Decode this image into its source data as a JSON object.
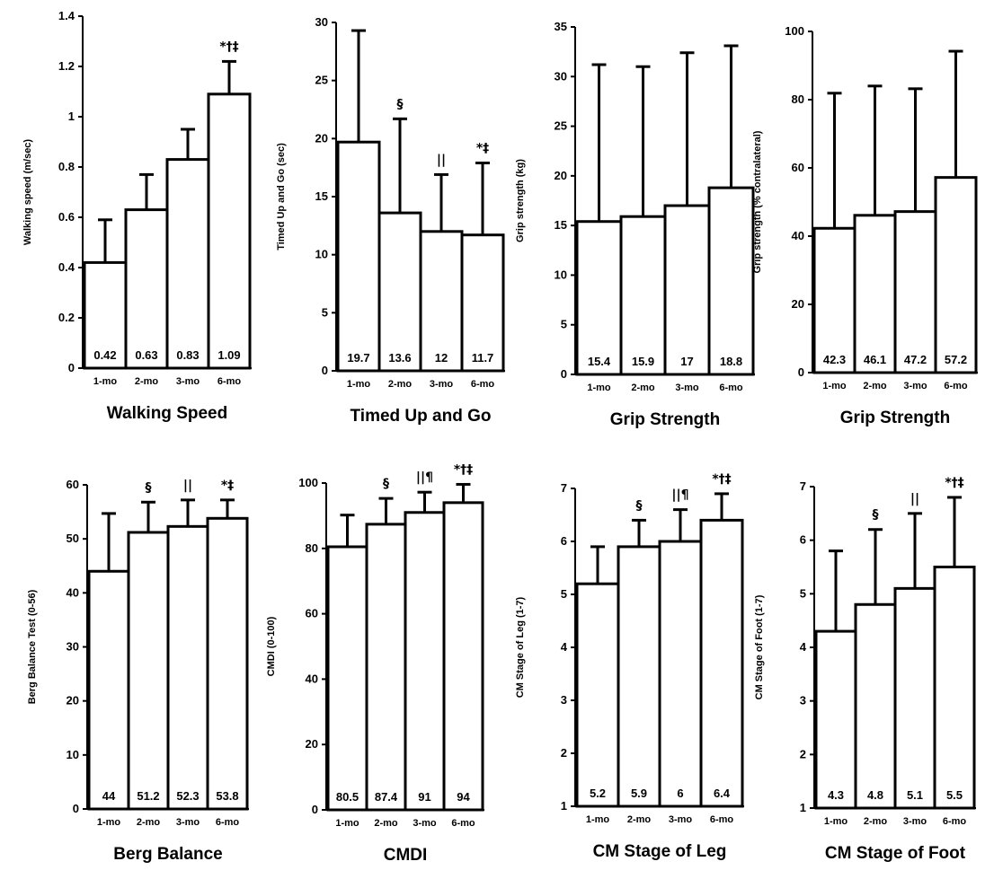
{
  "chart_data": [
    {
      "type": "bar",
      "title": "Walking Speed",
      "ylabel": "Walking speed (m/sec)",
      "categories": [
        "1-mo",
        "2-mo",
        "3-mo",
        "6-mo"
      ],
      "values": [
        0.42,
        0.63,
        0.83,
        1.09
      ],
      "value_labels": [
        "0.42",
        "0.63",
        "0.83",
        "1.09"
      ],
      "error_upper": [
        0.59,
        0.77,
        0.95,
        1.22
      ],
      "significance": [
        "",
        "",
        "",
        "*†‡"
      ],
      "ylim": [
        0,
        1.4
      ],
      "yticks": [
        0,
        0.2,
        0.4,
        0.6,
        0.8,
        1,
        1.2,
        1.4
      ],
      "ytick_labels": [
        "0",
        "0.2",
        "0.4",
        "0.6",
        "0.8",
        "1",
        "1.2",
        "1.4"
      ]
    },
    {
      "type": "bar",
      "title": "Timed Up and Go",
      "ylabel": "Timed Up and Go (sec)",
      "categories": [
        "1-mo",
        "2-mo",
        "3-mo",
        "6-mo"
      ],
      "values": [
        19.7,
        13.6,
        12,
        11.7
      ],
      "value_labels": [
        "19.7",
        "13.6",
        "12",
        "11.7"
      ],
      "error_upper": [
        29.3,
        21.7,
        16.9,
        17.9
      ],
      "significance": [
        "",
        "§",
        "||",
        "*‡"
      ],
      "ylim": [
        0,
        30
      ],
      "yticks": [
        0,
        5,
        10,
        15,
        20,
        25,
        30
      ],
      "ytick_labels": [
        "0",
        "5",
        "10",
        "15",
        "20",
        "25",
        "30"
      ]
    },
    {
      "type": "bar",
      "title": "Grip Strength",
      "ylabel": "Grip strength (kg)",
      "categories": [
        "1-mo",
        "2-mo",
        "3-mo",
        "6-mo"
      ],
      "values": [
        15.4,
        15.9,
        17,
        18.8
      ],
      "value_labels": [
        "15.4",
        "15.9",
        "17",
        "18.8"
      ],
      "error_upper": [
        31.2,
        31,
        32.4,
        33.1
      ],
      "significance": [
        "",
        "",
        "",
        ""
      ],
      "ylim": [
        0,
        35
      ],
      "yticks": [
        0,
        5,
        10,
        15,
        20,
        25,
        30,
        35
      ],
      "ytick_labels": [
        "0",
        "5",
        "10",
        "15",
        "20",
        "25",
        "30",
        "35"
      ]
    },
    {
      "type": "bar",
      "title": "Grip Strength",
      "ylabel": "Grip strength (% contralateral)",
      "categories": [
        "1-mo",
        "2-mo",
        "3-mo",
        "6-mo"
      ],
      "values": [
        42.3,
        46.1,
        47.2,
        57.2
      ],
      "value_labels": [
        "42.3",
        "46.1",
        "47.2",
        "57.2"
      ],
      "error_upper": [
        81.9,
        84,
        83.2,
        94.2
      ],
      "significance": [
        "",
        "",
        "",
        ""
      ],
      "ylim": [
        0,
        100
      ],
      "yticks": [
        0,
        20,
        40,
        60,
        80,
        100
      ],
      "ytick_labels": [
        "0",
        "20",
        "40",
        "60",
        "80",
        "100"
      ]
    },
    {
      "type": "bar",
      "title": "Berg Balance",
      "ylabel": "Berg Balance Test (0-56)",
      "categories": [
        "1-mo",
        "2-mo",
        "3-mo",
        "6-mo"
      ],
      "values": [
        44,
        51.2,
        52.3,
        53.8
      ],
      "value_labels": [
        "44",
        "51.2",
        "52.3",
        "53.8"
      ],
      "error_upper": [
        54.7,
        56.8,
        57.2,
        57.2
      ],
      "significance": [
        "",
        "§",
        "||",
        "*‡"
      ],
      "ylim": [
        0,
        60
      ],
      "yticks": [
        0,
        10,
        20,
        30,
        40,
        50,
        60
      ],
      "ytick_labels": [
        "0",
        "10",
        "20",
        "30",
        "40",
        "50",
        "60"
      ]
    },
    {
      "type": "bar",
      "title": "CMDI",
      "ylabel": "CMDI (0-100)",
      "categories": [
        "1-mo",
        "2-mo",
        "3-mo",
        "6-mo"
      ],
      "values": [
        80.5,
        87.4,
        91,
        94
      ],
      "value_labels": [
        "80.5",
        "87.4",
        "91",
        "94"
      ],
      "error_upper": [
        90.2,
        95.3,
        97.2,
        99.6
      ],
      "significance": [
        "",
        "§",
        "||¶",
        "*†‡"
      ],
      "ylim": [
        0,
        100
      ],
      "yticks": [
        0,
        20,
        40,
        60,
        80,
        100
      ],
      "ytick_labels": [
        "0",
        "20",
        "40",
        "60",
        "80",
        "100"
      ]
    },
    {
      "type": "bar",
      "title": "CM Stage of Leg",
      "ylabel": "CM Stage of Leg (1-7)",
      "categories": [
        "1-mo",
        "2-mo",
        "3-mo",
        "6-mo"
      ],
      "values": [
        5.2,
        5.9,
        6,
        6.4
      ],
      "value_labels": [
        "5.2",
        "5.9",
        "6",
        "6.4"
      ],
      "error_upper": [
        5.9,
        6.4,
        6.6,
        6.9
      ],
      "significance": [
        "",
        "§",
        "||¶",
        "*†‡"
      ],
      "ylim": [
        1,
        7
      ],
      "yticks": [
        1,
        2,
        3,
        4,
        5,
        6,
        7
      ],
      "ytick_labels": [
        "1",
        "2",
        "3",
        "4",
        "5",
        "6",
        "7"
      ]
    },
    {
      "type": "bar",
      "title": "CM Stage of Foot",
      "ylabel": "CM Stage of Foot (1-7)",
      "categories": [
        "1-mo",
        "2-mo",
        "3-mo",
        "6-mo"
      ],
      "values": [
        4.3,
        4.8,
        5.1,
        5.5
      ],
      "value_labels": [
        "4.3",
        "4.8",
        "5.1",
        "5.5"
      ],
      "error_upper": [
        5.8,
        6.2,
        6.5,
        6.8
      ],
      "significance": [
        "",
        "§",
        "||",
        "*†‡"
      ],
      "ylim": [
        1,
        7
      ],
      "yticks": [
        1,
        2,
        3,
        4,
        5,
        6,
        7
      ],
      "ytick_labels": [
        "1",
        "2",
        "3",
        "4",
        "5",
        "6",
        "7"
      ]
    }
  ]
}
